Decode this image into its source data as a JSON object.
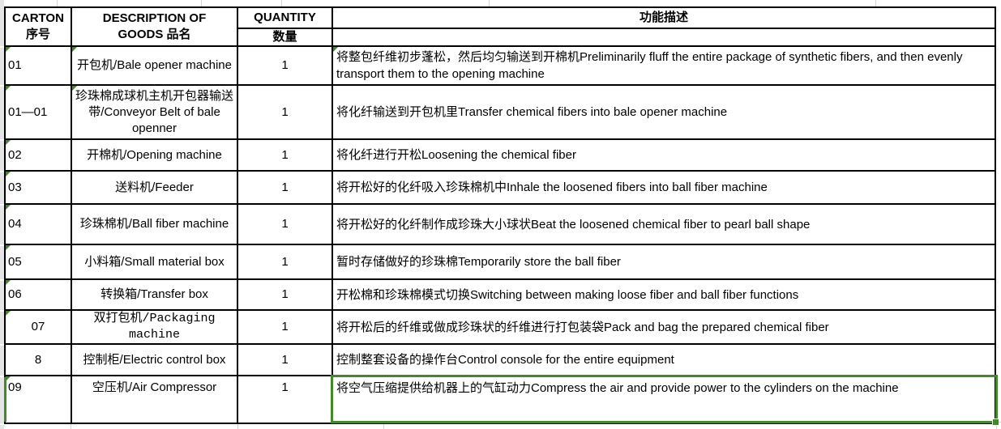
{
  "header": {
    "carton_line1": "CARTON",
    "carton_line2": "序号",
    "desc_line1": "DESCRIPTION OF",
    "desc_line2": "GOODS 品名",
    "quantity": "QUANTITY",
    "quantity_cn": "数量",
    "function": "功能描述"
  },
  "rows": [
    {
      "carton": "01",
      "description": "开包机/Bale opener machine",
      "quantity": "1",
      "function": "将整包纤维初步蓬松，然后均匀输送到开棉机Preliminarily fluff the entire package of synthetic fibers, and then evenly transport them to the opening machine"
    },
    {
      "carton": "01—01",
      "description": "珍珠棉成球机主机开包器输送带/Conveyor Belt of bale openner",
      "quantity": "1",
      "function": "将化纤输送到开包机里Transfer chemical fibers into bale opener machine"
    },
    {
      "carton": "02",
      "description": "开棉机/Opening machine",
      "quantity": "1",
      "function": "将化纤进行开松Loosening the chemical fiber"
    },
    {
      "carton": "03",
      "description": "送料机/Feeder",
      "quantity": "1",
      "function": "将开松好的化纤吸入珍珠棉机中Inhale the loosened fibers into ball fiber machine"
    },
    {
      "carton": "04",
      "description": "珍珠棉机/Ball fiber machine",
      "quantity": "1",
      "function": "将开松好的化纤制作成珍珠大小球状Beat the loosened chemical fiber to pearl ball shape"
    },
    {
      "carton": "05",
      "description": "小料箱/Small material box",
      "quantity": "1",
      "function": "暂时存储做好的珍珠棉Temporarily store the ball fiber"
    },
    {
      "carton": "06",
      "description": "转换箱/Transfer box",
      "quantity": "1",
      "function": "开松棉和珍珠棉模式切换Switching between making loose fiber and ball fiber functions"
    },
    {
      "carton": "07",
      "description": "双打包机/Packaging machine",
      "quantity": "1",
      "function": "将开松后的纤维或做成珍珠状的纤维进行打包装袋Pack and bag the prepared chemical fiber"
    },
    {
      "carton": "8",
      "description": "控制柜/Electric control box",
      "quantity": "1",
      "function": "控制整套设备的操作台Control console for the entire equipment"
    },
    {
      "carton": "09",
      "description": "空压机/Air Compressor",
      "quantity": "1",
      "function": "将空气压缩提供给机器上的气缸动力Compress the air and provide power to the cylinders on the machine"
    }
  ],
  "colors": {
    "selection_green": "#3e8b27",
    "cell_border": "#000000",
    "gridline_gray": "#d4d4d4",
    "strip_gray": "#e5e5e5"
  }
}
